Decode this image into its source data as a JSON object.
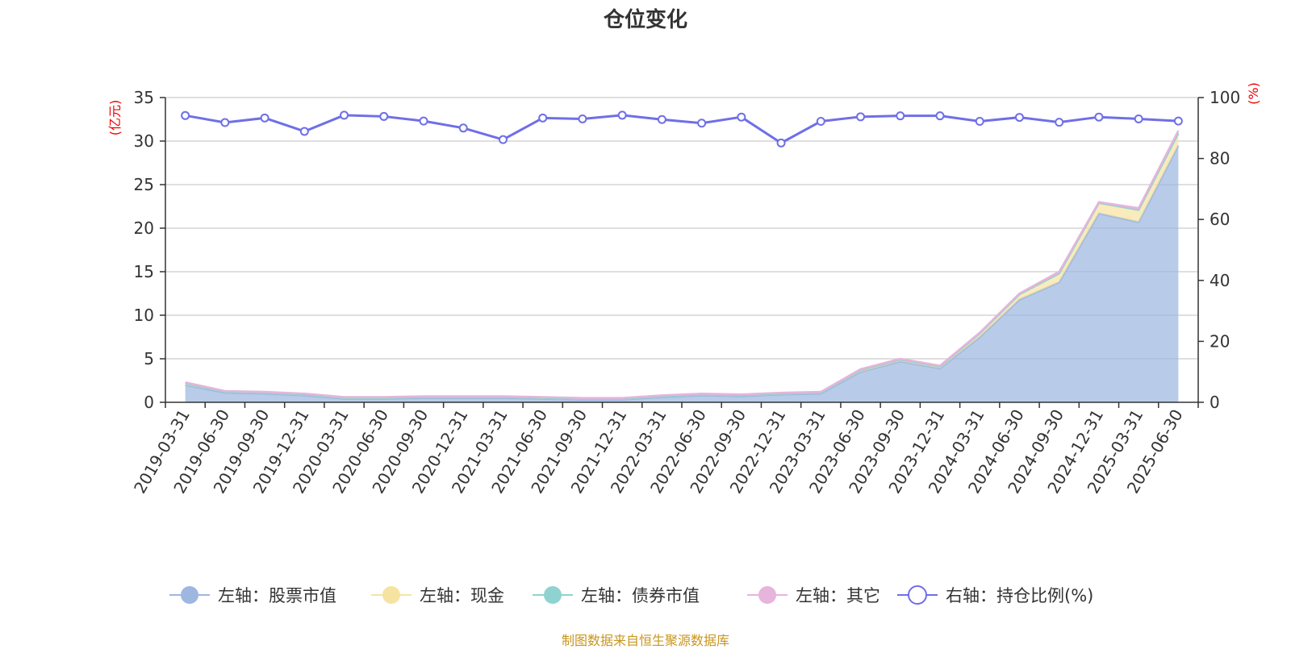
{
  "chart_data": {
    "type": "area",
    "title": "仓位变化",
    "left_axis_unit": "(亿元)",
    "right_axis_unit": "(%)",
    "y_left_lim": [
      0,
      35
    ],
    "y_left_ticks": [
      0,
      5,
      10,
      15,
      20,
      25,
      30,
      35
    ],
    "y_right_lim": [
      0,
      100
    ],
    "y_right_ticks": [
      0,
      20,
      40,
      60,
      80,
      100
    ],
    "grid": true,
    "legend_position": "bottom",
    "categories": [
      "2019-03-31",
      "2019-06-30",
      "2019-09-30",
      "2019-12-31",
      "2020-03-31",
      "2020-06-30",
      "2020-09-30",
      "2020-12-31",
      "2021-03-31",
      "2021-06-30",
      "2021-09-30",
      "2021-12-31",
      "2022-03-31",
      "2022-06-30",
      "2022-09-30",
      "2022-12-31",
      "2023-03-31",
      "2023-06-30",
      "2023-09-30",
      "2023-12-31",
      "2024-03-31",
      "2024-06-30",
      "2024-09-30",
      "2024-12-31",
      "2025-03-31",
      "2025-06-30"
    ],
    "series": [
      {
        "name": "左轴：股票市值",
        "axis": "left",
        "stack": true,
        "color": "#9db7e0",
        "values": [
          2.0,
          1.1,
          1.0,
          0.8,
          0.4,
          0.4,
          0.5,
          0.5,
          0.5,
          0.4,
          0.3,
          0.3,
          0.6,
          0.8,
          0.7,
          0.9,
          1.0,
          3.5,
          4.7,
          3.9,
          7.5,
          11.8,
          13.8,
          21.7,
          20.7,
          29.5
        ]
      },
      {
        "name": "左轴：现金",
        "axis": "left",
        "stack": true,
        "color": "#f7e3a1",
        "values": [
          0.2,
          0.1,
          0.1,
          0.1,
          0.1,
          0.1,
          0.1,
          0.1,
          0.1,
          0.1,
          0.1,
          0.1,
          0.1,
          0.1,
          0.1,
          0.1,
          0.1,
          0.2,
          0.2,
          0.2,
          0.4,
          0.6,
          1.0,
          1.2,
          1.4,
          1.4
        ]
      },
      {
        "name": "左轴：债券市值",
        "axis": "left",
        "stack": true,
        "color": "#8fd3d0",
        "values": [
          0,
          0,
          0,
          0,
          0,
          0,
          0,
          0,
          0,
          0,
          0,
          0,
          0,
          0,
          0,
          0,
          0,
          0,
          0,
          0,
          0,
          0,
          0,
          0,
          0,
          0
        ]
      },
      {
        "name": "左轴：其它",
        "axis": "left",
        "stack": true,
        "color": "#e6b4dc",
        "values": [
          0.1,
          0.1,
          0.1,
          0.1,
          0.1,
          0.1,
          0.1,
          0.1,
          0.1,
          0.1,
          0.1,
          0.1,
          0.1,
          0.1,
          0.1,
          0.1,
          0.1,
          0.1,
          0.1,
          0.1,
          0.1,
          0.1,
          0.2,
          0.1,
          0.2,
          0.3
        ]
      },
      {
        "name": "右轴：持仓比例(%)",
        "axis": "right",
        "stack": false,
        "color": "#6f6fe8",
        "values": [
          94.1,
          91.8,
          93.3,
          88.9,
          94.2,
          93.8,
          92.3,
          90.0,
          86.2,
          93.3,
          93.0,
          94.2,
          92.8,
          91.6,
          93.6,
          85.1,
          92.2,
          93.7,
          94.0,
          94.0,
          92.2,
          93.5,
          91.9,
          93.6,
          93.0,
          92.3
        ]
      }
    ]
  },
  "footer": "制图数据来自恒生聚源数据库"
}
